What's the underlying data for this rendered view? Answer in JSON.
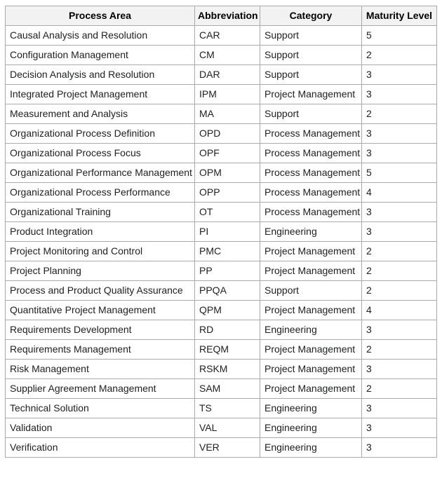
{
  "colors": {
    "page_background": "#ffffff",
    "table_border": "#aaaaaa",
    "header_background": "#f2f2f2",
    "row_background": "#ffffff",
    "header_text": "#000000",
    "body_text": "#202122"
  },
  "table": {
    "headers": [
      "Process Area",
      "Abbreviation",
      "Category",
      "Maturity Level"
    ],
    "rows": [
      [
        "Causal Analysis and Resolution",
        "CAR",
        "Support",
        "5"
      ],
      [
        "Configuration Management",
        "CM",
        "Support",
        "2"
      ],
      [
        "Decision Analysis and Resolution",
        "DAR",
        "Support",
        "3"
      ],
      [
        "Integrated Project Management",
        "IPM",
        "Project Management",
        "3"
      ],
      [
        "Measurement and Analysis",
        "MA",
        "Support",
        "2"
      ],
      [
        "Organizational Process Definition",
        "OPD",
        "Process Management",
        "3"
      ],
      [
        "Organizational Process Focus",
        "OPF",
        "Process Management",
        "3"
      ],
      [
        "Organizational Performance Management",
        "OPM",
        "Process Management",
        "5"
      ],
      [
        "Organizational Process Performance",
        "OPP",
        "Process Management",
        "4"
      ],
      [
        "Organizational Training",
        "OT",
        "Process Management",
        "3"
      ],
      [
        "Product Integration",
        "PI",
        "Engineering",
        "3"
      ],
      [
        "Project Monitoring and Control",
        "PMC",
        "Project Management",
        "2"
      ],
      [
        "Project Planning",
        "PP",
        "Project Management",
        "2"
      ],
      [
        "Process and Product Quality Assurance",
        "PPQA",
        "Support",
        "2"
      ],
      [
        "Quantitative Project Management",
        "QPM",
        "Project Management",
        "4"
      ],
      [
        "Requirements Development",
        "RD",
        "Engineering",
        "3"
      ],
      [
        "Requirements Management",
        "REQM",
        "Project Management",
        "2"
      ],
      [
        "Risk Management",
        "RSKM",
        "Project Management",
        "3"
      ],
      [
        "Supplier Agreement Management",
        "SAM",
        "Project Management",
        "2"
      ],
      [
        "Technical Solution",
        "TS",
        "Engineering",
        "3"
      ],
      [
        "Validation",
        "VAL",
        "Engineering",
        "3"
      ],
      [
        "Verification",
        "VER",
        "Engineering",
        "3"
      ]
    ]
  },
  "chart_data": {
    "type": "table",
    "title": "",
    "columns": [
      "Process Area",
      "Abbreviation",
      "Category",
      "Maturity Level"
    ],
    "rows": [
      {
        "process_area": "Causal Analysis and Resolution",
        "abbreviation": "CAR",
        "category": "Support",
        "maturity_level": 5
      },
      {
        "process_area": "Configuration Management",
        "abbreviation": "CM",
        "category": "Support",
        "maturity_level": 2
      },
      {
        "process_area": "Decision Analysis and Resolution",
        "abbreviation": "DAR",
        "category": "Support",
        "maturity_level": 3
      },
      {
        "process_area": "Integrated Project Management",
        "abbreviation": "IPM",
        "category": "Project Management",
        "maturity_level": 3
      },
      {
        "process_area": "Measurement and Analysis",
        "abbreviation": "MA",
        "category": "Support",
        "maturity_level": 2
      },
      {
        "process_area": "Organizational Process Definition",
        "abbreviation": "OPD",
        "category": "Process Management",
        "maturity_level": 3
      },
      {
        "process_area": "Organizational Process Focus",
        "abbreviation": "OPF",
        "category": "Process Management",
        "maturity_level": 3
      },
      {
        "process_area": "Organizational Performance Management",
        "abbreviation": "OPM",
        "category": "Process Management",
        "maturity_level": 5
      },
      {
        "process_area": "Organizational Process Performance",
        "abbreviation": "OPP",
        "category": "Process Management",
        "maturity_level": 4
      },
      {
        "process_area": "Organizational Training",
        "abbreviation": "OT",
        "category": "Process Management",
        "maturity_level": 3
      },
      {
        "process_area": "Product Integration",
        "abbreviation": "PI",
        "category": "Engineering",
        "maturity_level": 3
      },
      {
        "process_area": "Project Monitoring and Control",
        "abbreviation": "PMC",
        "category": "Project Management",
        "maturity_level": 2
      },
      {
        "process_area": "Project Planning",
        "abbreviation": "PP",
        "category": "Project Management",
        "maturity_level": 2
      },
      {
        "process_area": "Process and Product Quality Assurance",
        "abbreviation": "PPQA",
        "category": "Support",
        "maturity_level": 2
      },
      {
        "process_area": "Quantitative Project Management",
        "abbreviation": "QPM",
        "category": "Project Management",
        "maturity_level": 4
      },
      {
        "process_area": "Requirements Development",
        "abbreviation": "RD",
        "category": "Engineering",
        "maturity_level": 3
      },
      {
        "process_area": "Requirements Management",
        "abbreviation": "REQM",
        "category": "Project Management",
        "maturity_level": 2
      },
      {
        "process_area": "Risk Management",
        "abbreviation": "RSKM",
        "category": "Project Management",
        "maturity_level": 3
      },
      {
        "process_area": "Supplier Agreement Management",
        "abbreviation": "SAM",
        "category": "Project Management",
        "maturity_level": 2
      },
      {
        "process_area": "Technical Solution",
        "abbreviation": "TS",
        "category": "Engineering",
        "maturity_level": 3
      },
      {
        "process_area": "Validation",
        "abbreviation": "VAL",
        "category": "Engineering",
        "maturity_level": 3
      },
      {
        "process_area": "Verification",
        "abbreviation": "VER",
        "category": "Engineering",
        "maturity_level": 3
      }
    ]
  }
}
